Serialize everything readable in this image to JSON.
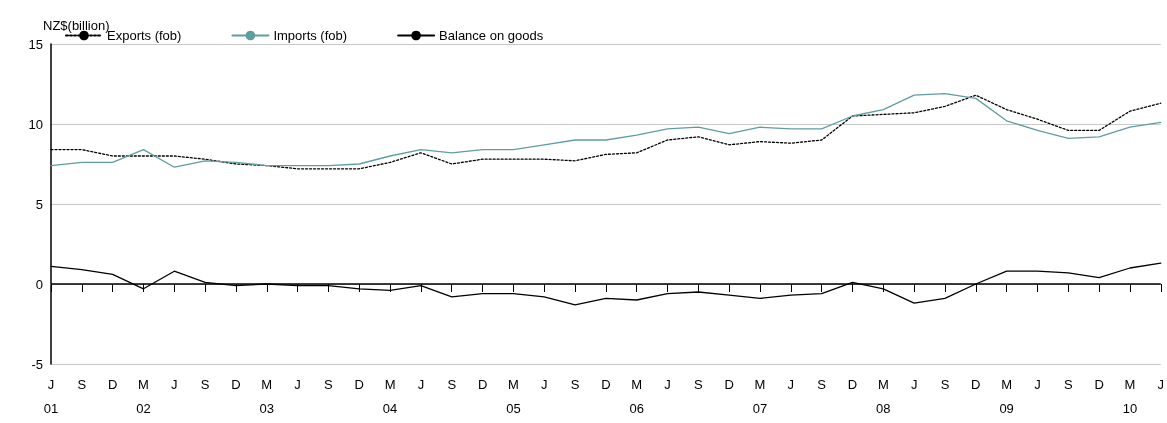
{
  "chart_data": {
    "type": "line",
    "ylabel": "NZ$(billion)",
    "categories": [
      "J\n01",
      "S",
      "D",
      "M\n02",
      "J",
      "S",
      "D",
      "M\n03",
      "J",
      "S",
      "D",
      "M\n04",
      "J",
      "S",
      "D",
      "M\n05",
      "J",
      "S",
      "D",
      "M\n06",
      "J",
      "S",
      "D",
      "M\n07",
      "J",
      "S",
      "D",
      "M\n08",
      "J",
      "S",
      "D",
      "M\n09",
      "J",
      "S",
      "D",
      "M\n10",
      "J"
    ],
    "series": [
      {
        "name": "Exports (fob)",
        "color": "#000000",
        "line_style": "dotted",
        "values": [
          8.4,
          8.4,
          8.0,
          8.0,
          8.0,
          7.8,
          7.5,
          7.4,
          7.2,
          7.2,
          7.2,
          7.6,
          8.2,
          7.5,
          7.8,
          7.8,
          7.8,
          7.7,
          8.1,
          8.2,
          9.0,
          9.2,
          8.7,
          8.9,
          8.8,
          9.0,
          10.5,
          10.6,
          10.7,
          11.1,
          11.8,
          10.9,
          10.3,
          9.6,
          9.6,
          10.8,
          11.3
        ]
      },
      {
        "name": "Imports (fob)",
        "color": "#5f9ea0",
        "line_style": "solid",
        "values": [
          7.4,
          7.6,
          7.6,
          8.4,
          7.3,
          7.7,
          7.6,
          7.4,
          7.4,
          7.4,
          7.5,
          8.0,
          8.4,
          8.2,
          8.4,
          8.4,
          8.7,
          9.0,
          9.0,
          9.3,
          9.7,
          9.8,
          9.4,
          9.8,
          9.7,
          9.7,
          10.5,
          10.9,
          11.8,
          11.9,
          11.6,
          10.2,
          9.6,
          9.1,
          9.2,
          9.8,
          10.1
        ]
      },
      {
        "name": "Balance on goods",
        "color": "#000000",
        "line_style": "solid",
        "values": [
          1.1,
          0.9,
          0.6,
          -0.3,
          0.8,
          0.1,
          -0.1,
          0.0,
          -0.1,
          -0.1,
          -0.3,
          -0.4,
          -0.1,
          -0.8,
          -0.6,
          -0.6,
          -0.8,
          -1.3,
          -0.9,
          -1.0,
          -0.6,
          -0.5,
          -0.7,
          -0.9,
          -0.7,
          -0.6,
          0.1,
          -0.3,
          -1.2,
          -0.9,
          0.0,
          0.8,
          0.8,
          0.7,
          0.4,
          1.0,
          1.3
        ]
      }
    ],
    "ylim": [
      -5,
      15
    ],
    "yticks": [
      -5,
      0,
      5,
      10,
      15
    ],
    "grid": "y",
    "legend": "top left",
    "marker": "none",
    "ref_lines": [
      {
        "axis": "y",
        "value": 0,
        "color": "#000000"
      }
    ]
  }
}
